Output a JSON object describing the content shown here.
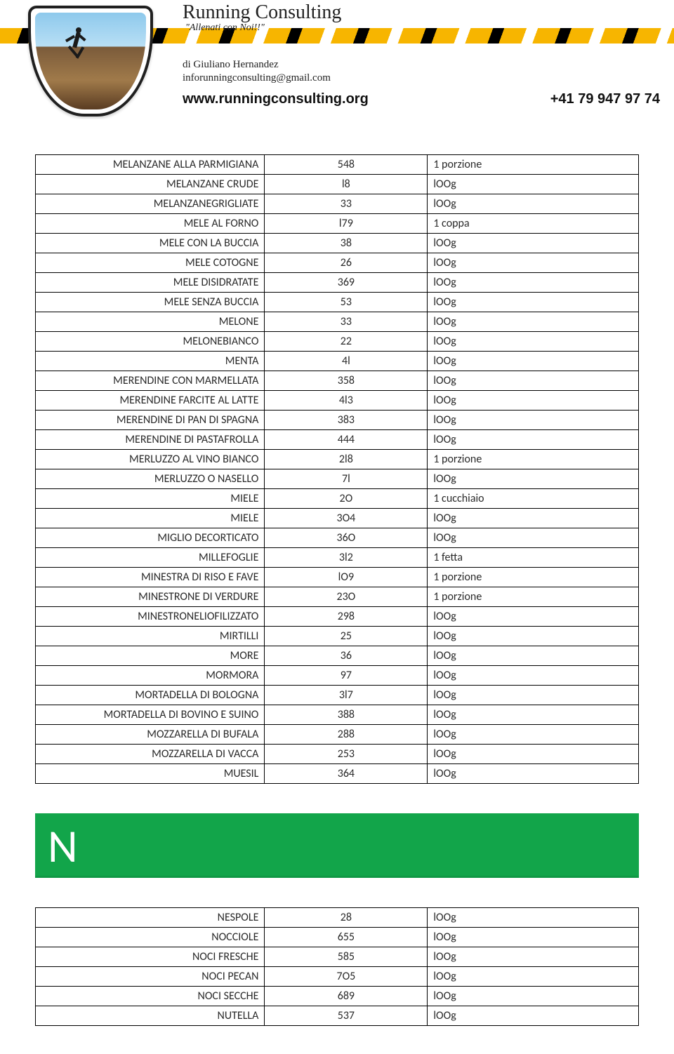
{
  "header": {
    "brand": "Running Consulting",
    "tagline": "\"Allenati con Noi!!\"",
    "author": "di Giuliano Hernandez",
    "email": "inforunningconsulting@gmail.com",
    "website": "www.runningconsulting.org",
    "phone": "+41 79 947 97 74"
  },
  "section_letter": "N",
  "tables": {
    "m": [
      {
        "name": "MELANZANE ALLA PARMIGIANA",
        "val": "548",
        "unit": "1 porzione"
      },
      {
        "name": "MELANZANE  CRUDE",
        "val": "l8",
        "unit": "lOOg"
      },
      {
        "name": "MELANZANEGRIGLIATE",
        "val": "33",
        "unit": "lOOg"
      },
      {
        "name": "MELE AL FORNO",
        "val": "l79",
        "unit": "1 coppa"
      },
      {
        "name": "MELE CON LA BUCCIA",
        "val": "38",
        "unit": "lOOg"
      },
      {
        "name": "MELE COTOGNE",
        "val": "26",
        "unit": "lOOg"
      },
      {
        "name": "MELE  DISIDRATATE",
        "val": "369",
        "unit": "lOOg"
      },
      {
        "name": "MELE SENZA BUCCIA",
        "val": "53",
        "unit": "lOOg"
      },
      {
        "name": "MELONE",
        "val": "33",
        "unit": "lOOg"
      },
      {
        "name": "MELONEBIANCO",
        "val": "22",
        "unit": "lOOg"
      },
      {
        "name": "MENTA",
        "val": "4l",
        "unit": "lOOg"
      },
      {
        "name": "MERENDINE  CON  MARMELLATA",
        "val": "358",
        "unit": "lOOg"
      },
      {
        "name": "MERENDINE  FARCITE  AL  LATTE",
        "val": "4l3",
        "unit": "lOOg"
      },
      {
        "name": "MERENDINE DI PAN DI SPAGNA",
        "val": "383",
        "unit": "lOOg"
      },
      {
        "name": "MERENDINE DI PASTAFROLLA",
        "val": "444",
        "unit": "lOOg"
      },
      {
        "name": "MERLUZZO AL VINO BIANCO",
        "val": "2l8",
        "unit": "1 porzione"
      },
      {
        "name": "MERLUZZO O NASELLO",
        "val": "7l",
        "unit": "lOOg"
      },
      {
        "name": "MIELE",
        "val": "2O",
        "unit": "1 cucchiaio"
      },
      {
        "name": "MIELE",
        "val": "3O4",
        "unit": "lOOg"
      },
      {
        "name": "MIGLIO  DECORTICATO",
        "val": "36O",
        "unit": "lOOg"
      },
      {
        "name": "MILLEFOGLIE",
        "val": "3l2",
        "unit": "1 fetta"
      },
      {
        "name": "MINESTRA DI RISO E FAVE",
        "val": "lO9",
        "unit": "1 porzione"
      },
      {
        "name": "MINESTRONE DI VERDURE",
        "val": "23O",
        "unit": "1 porzione"
      },
      {
        "name": "MINESTRONELIOFILIZZATO",
        "val": "298",
        "unit": "lOOg"
      },
      {
        "name": "MIRTILLI",
        "val": "25",
        "unit": "lOOg"
      },
      {
        "name": "MORE",
        "val": "36",
        "unit": "lOOg"
      },
      {
        "name": "MORMORA",
        "val": "97",
        "unit": "lOOg"
      },
      {
        "name": "MORTADELLA DI BOLOGNA",
        "val": "3l7",
        "unit": "lOOg"
      },
      {
        "name": "MORTADELLA DI BOVINO E SUINO",
        "val": "388",
        "unit": "lOOg"
      },
      {
        "name": "MOZZARELLA DI BUFALA",
        "val": "288",
        "unit": "lOOg"
      },
      {
        "name": "MOZZARELLA DI VACCA",
        "val": "253",
        "unit": "lOOg"
      },
      {
        "name": "MUESIL",
        "val": "364",
        "unit": "lOOg"
      }
    ],
    "n": [
      {
        "name": "NESPOLE",
        "val": "28",
        "unit": "lOOg"
      },
      {
        "name": "NOCCIOLE",
        "val": "655",
        "unit": "lOOg"
      },
      {
        "name": "NOCI FRESCHE",
        "val": "585",
        "unit": "lOOg"
      },
      {
        "name": "NOCI PECAN",
        "val": "7O5",
        "unit": "lOOg"
      },
      {
        "name": "NOCI  SECCHE",
        "val": "689",
        "unit": "lOOg"
      },
      {
        "name": "NUTELLA",
        "val": "537",
        "unit": "lOOg"
      }
    ]
  },
  "styles": {
    "section_bg": "#12a54a",
    "border_color": "#000000",
    "text_color": "#2a2a2a"
  }
}
